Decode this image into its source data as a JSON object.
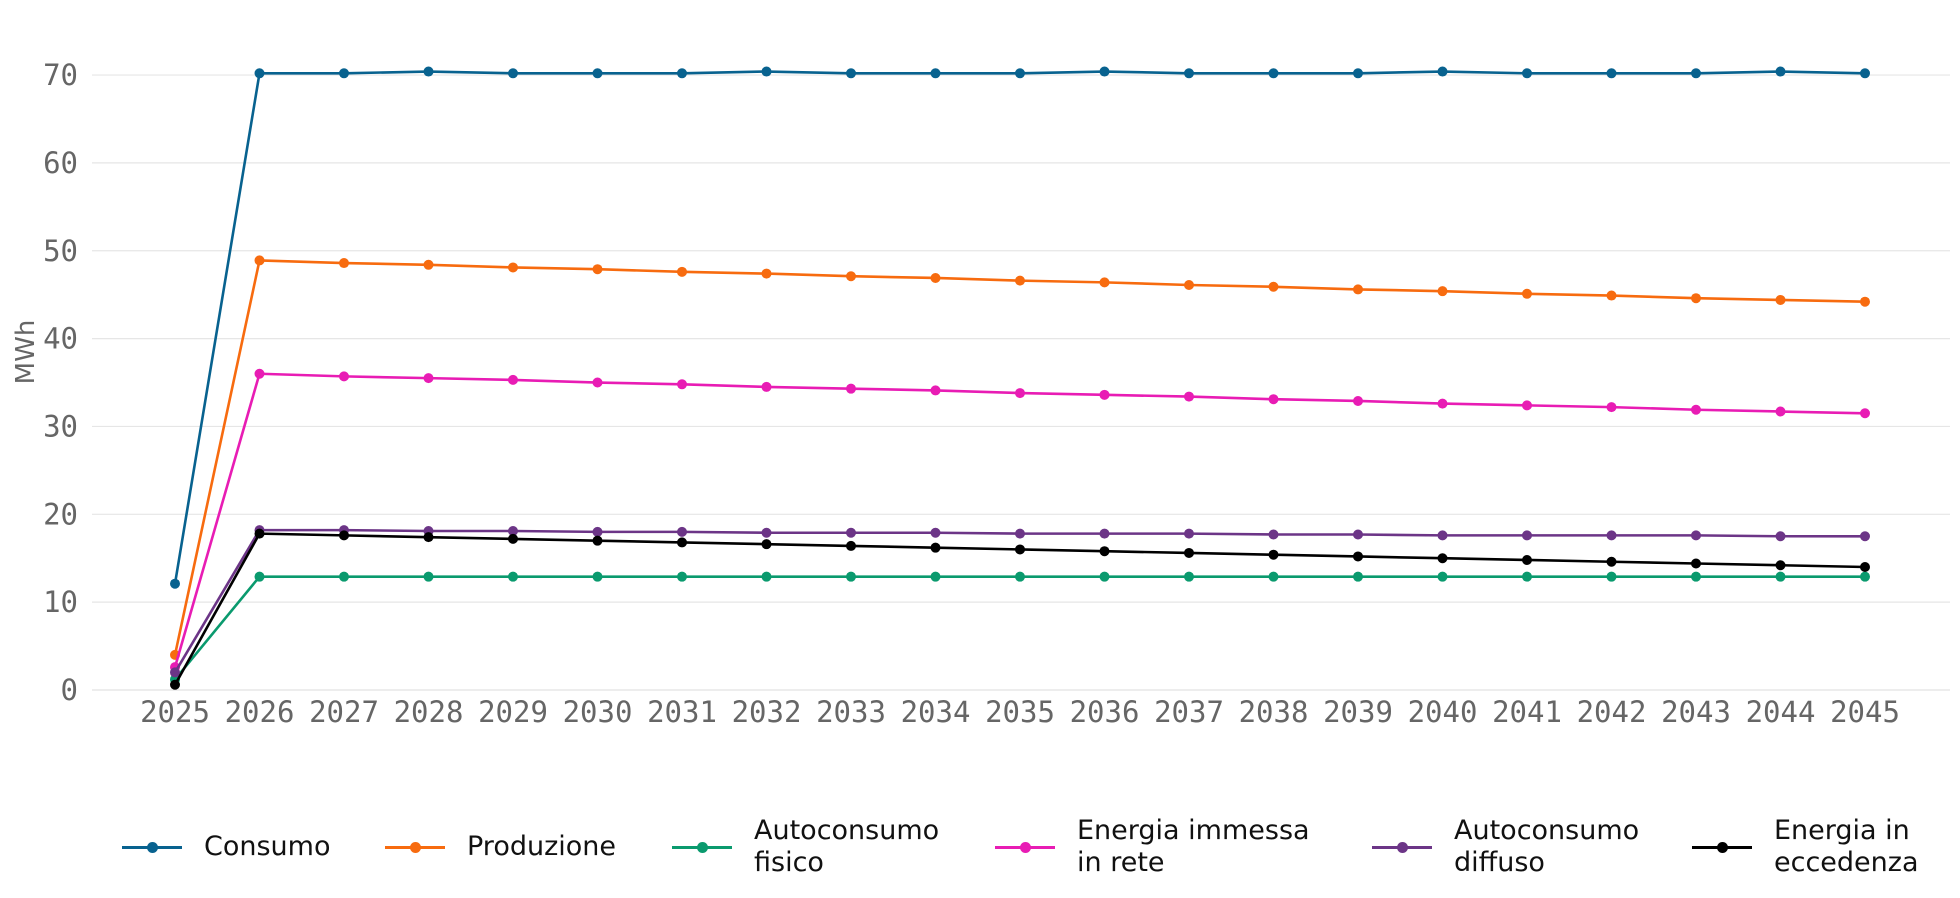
{
  "chart_data": {
    "type": "line",
    "ylabel": "MWh",
    "xlabel": "",
    "ylim": [
      0,
      73
    ],
    "yticks": [
      0,
      10,
      20,
      30,
      40,
      50,
      60,
      70
    ],
    "grid": "horizontal",
    "legend_position": "bottom",
    "categories": [
      "2025",
      "2026",
      "2027",
      "2028",
      "2029",
      "2030",
      "2031",
      "2032",
      "2033",
      "2034",
      "2035",
      "2036",
      "2037",
      "2038",
      "2039",
      "2040",
      "2041",
      "2042",
      "2043",
      "2044",
      "2045"
    ],
    "series": [
      {
        "name": "Consumo",
        "color": "#08628f",
        "values": [
          12.1,
          70.2,
          70.2,
          70.4,
          70.2,
          70.2,
          70.2,
          70.4,
          70.2,
          70.2,
          70.2,
          70.4,
          70.2,
          70.2,
          70.2,
          70.4,
          70.2,
          70.2,
          70.2,
          70.4,
          70.2
        ]
      },
      {
        "name": "Produzione",
        "color": "#f76b0f",
        "values": [
          4.0,
          48.9,
          48.6,
          48.4,
          48.1,
          47.9,
          47.6,
          47.4,
          47.1,
          46.9,
          46.6,
          46.4,
          46.1,
          45.9,
          45.6,
          45.4,
          45.1,
          44.9,
          44.6,
          44.4,
          44.2
        ]
      },
      {
        "name": "Autoconsumo\nfisico",
        "color": "#0a9a6e",
        "values": [
          1.2,
          12.9,
          12.9,
          12.9,
          12.9,
          12.9,
          12.9,
          12.9,
          12.9,
          12.9,
          12.9,
          12.9,
          12.9,
          12.9,
          12.9,
          12.9,
          12.9,
          12.9,
          12.9,
          12.9,
          12.9
        ]
      },
      {
        "name": "Energia immessa\nin rete",
        "color": "#e81cb4",
        "values": [
          2.6,
          36.0,
          35.7,
          35.5,
          35.3,
          35.0,
          34.8,
          34.5,
          34.3,
          34.1,
          33.8,
          33.6,
          33.4,
          33.1,
          32.9,
          32.6,
          32.4,
          32.2,
          31.9,
          31.7,
          31.5
        ]
      },
      {
        "name": "Autoconsumo\ndiffuso",
        "color": "#6c3587",
        "values": [
          2.0,
          18.2,
          18.2,
          18.1,
          18.1,
          18.0,
          18.0,
          17.9,
          17.9,
          17.9,
          17.8,
          17.8,
          17.8,
          17.7,
          17.7,
          17.6,
          17.6,
          17.6,
          17.6,
          17.5,
          17.5
        ]
      },
      {
        "name": "Energia in\neccedenza",
        "color": "#000000",
        "values": [
          0.6,
          17.8,
          17.6,
          17.4,
          17.2,
          17.0,
          16.8,
          16.6,
          16.4,
          16.2,
          16.0,
          15.8,
          15.6,
          15.4,
          15.2,
          15.0,
          14.8,
          14.6,
          14.4,
          14.2,
          14.0
        ]
      }
    ]
  }
}
